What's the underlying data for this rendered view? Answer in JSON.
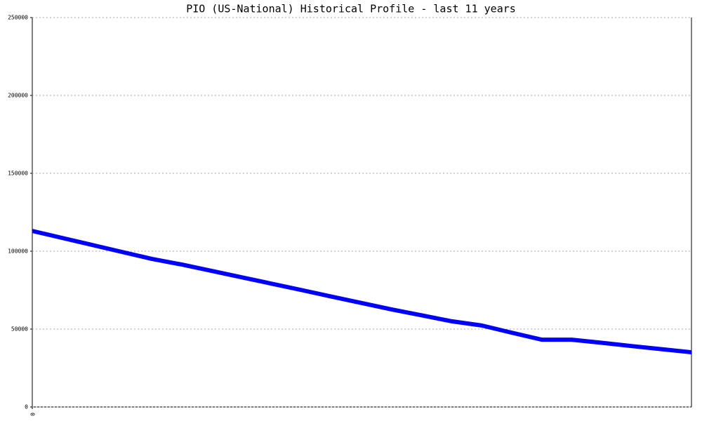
{
  "chart_data": {
    "type": "line",
    "title": "PIO (US-National) Historical Profile - last 11 years",
    "x": [
      0,
      1,
      2,
      3,
      4,
      5,
      6,
      7,
      8,
      9,
      10,
      11,
      12,
      13,
      14,
      15,
      16,
      17,
      18,
      19,
      20,
      21,
      22
    ],
    "series": [
      {
        "color": "#0000ff",
        "values": [
          113000,
          108500,
          104000,
          99500,
          95000,
          91400,
          87300,
          83200,
          79100,
          75000,
          70800,
          66700,
          62600,
          58800,
          55000,
          52300,
          47700,
          43200,
          43200,
          41200,
          39100,
          37100,
          35100
        ]
      }
    ],
    "xlim": [
      0,
      22
    ],
    "xticks": [
      0
    ],
    "ylim": [
      0,
      250000
    ],
    "yticks": [
      0,
      50000,
      100000,
      150000,
      200000,
      250000
    ],
    "grid": true
  }
}
